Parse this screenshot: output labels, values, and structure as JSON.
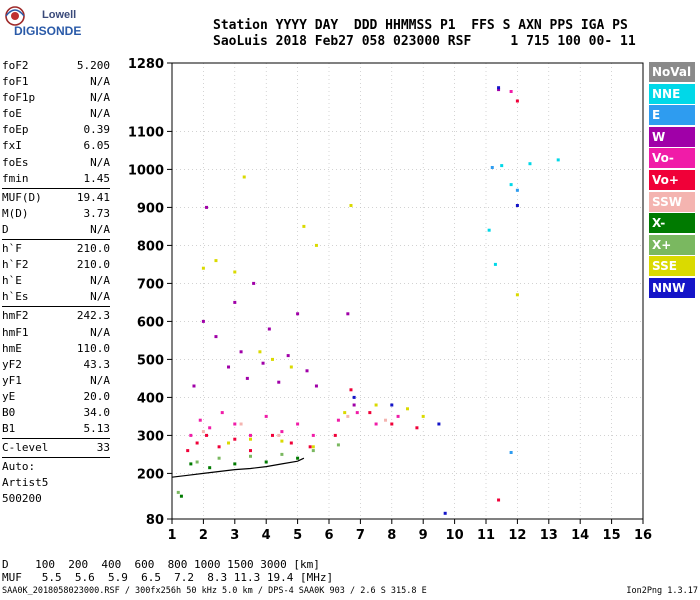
{
  "logo": {
    "line1": "Lowell",
    "line2": "DIGISONDE"
  },
  "header": {
    "line1": "Station YYYY DAY  DDD HHMMSS P1  FFS S AXN PPS IGA PS",
    "line2": "SaoLuis 2018 Feb27 058 023000 RSF     1 715 100 00- 11"
  },
  "params": {
    "group1": [
      {
        "k": "foF2",
        "v": "5.200"
      },
      {
        "k": "foF1",
        "v": "N/A"
      },
      {
        "k": "foF1p",
        "v": "N/A"
      },
      {
        "k": "foE",
        "v": "N/A"
      },
      {
        "k": "foEp",
        "v": "0.39"
      },
      {
        "k": "fxI",
        "v": "6.05"
      },
      {
        "k": "foEs",
        "v": "N/A"
      },
      {
        "k": "fmin",
        "v": "1.45"
      }
    ],
    "group2": [
      {
        "k": "MUF(D)",
        "v": "19.41"
      },
      {
        "k": "M(D)",
        "v": "3.73"
      },
      {
        "k": "D",
        "v": "N/A"
      }
    ],
    "group3": [
      {
        "k": "h`F",
        "v": "210.0"
      },
      {
        "k": "h`F2",
        "v": "210.0"
      },
      {
        "k": "h`E",
        "v": "N/A"
      },
      {
        "k": "h`Es",
        "v": "N/A"
      }
    ],
    "group4": [
      {
        "k": "hmF2",
        "v": "242.3"
      },
      {
        "k": "hmF1",
        "v": "N/A"
      },
      {
        "k": "hmE",
        "v": "110.0"
      },
      {
        "k": "yF2",
        "v": "43.3"
      },
      {
        "k": "yF1",
        "v": "N/A"
      },
      {
        "k": "yE",
        "v": "20.0"
      },
      {
        "k": "B0",
        "v": "34.0"
      },
      {
        "k": "B1",
        "v": "5.13"
      }
    ],
    "clevel": {
      "k": "C-level",
      "v": "33"
    },
    "auto": [
      "Auto:",
      "Artist5",
      "500200"
    ]
  },
  "legend": [
    {
      "label": "NoVal",
      "color": "#8a8a8a"
    },
    {
      "label": "NNE",
      "color": "#00d8e8"
    },
    {
      "label": "E",
      "color": "#2e9cf0"
    },
    {
      "label": "W",
      "color": "#a000a8"
    },
    {
      "label": "Vo-",
      "color": "#f01ca8"
    },
    {
      "label": "Vo+",
      "color": "#f00038"
    },
    {
      "label": "SSW",
      "color": "#f4b4b0"
    },
    {
      "label": "X-",
      "color": "#007a00"
    },
    {
      "label": "X+",
      "color": "#7ab860"
    },
    {
      "label": "SSE",
      "color": "#dada00"
    },
    {
      "label": "NNW",
      "color": "#1414c8"
    }
  ],
  "bottom": {
    "d_line": "D    100  200  400  600  800 1000 1500 3000 [km]",
    "muf_line": "MUF   5.5  5.6  5.9  6.5  7.2  8.3 11.3 19.4 [MHz]"
  },
  "footer": {
    "left": "SAA0K_2018058023000.RSF / 300fx256h 50 kHz 5.0 km / DPS-4 SAA0K 903 / 2.6 S 315.8 E",
    "right": "Ion2Png 1.3.17"
  },
  "chart_data": {
    "type": "scatter",
    "title": "",
    "xlabel": "",
    "ylabel": "",
    "xlim": [
      1,
      16
    ],
    "ylim": [
      80,
      1280
    ],
    "xticks": [
      1,
      2,
      3,
      4,
      5,
      6,
      7,
      8,
      9,
      10,
      11,
      12,
      13,
      14,
      15,
      16
    ],
    "yticks": [
      80,
      200,
      300,
      400,
      500,
      600,
      700,
      800,
      900,
      1000,
      1100,
      1280
    ],
    "grid": "dotted",
    "legend_position": "right",
    "series": [
      {
        "name": "NoVal",
        "points": []
      },
      {
        "name": "NNE",
        "points": [
          [
            11.1,
            840
          ],
          [
            11.3,
            750
          ],
          [
            11.5,
            1010
          ],
          [
            11.8,
            960
          ],
          [
            12.4,
            1015
          ],
          [
            13.3,
            1025
          ]
        ]
      },
      {
        "name": "E",
        "points": [
          [
            11.2,
            1005
          ],
          [
            11.8,
            255
          ],
          [
            12.0,
            945
          ]
        ]
      },
      {
        "name": "W",
        "points": [
          [
            1.7,
            430
          ],
          [
            2.0,
            600
          ],
          [
            2.1,
            900
          ],
          [
            2.4,
            560
          ],
          [
            2.8,
            480
          ],
          [
            3.0,
            650
          ],
          [
            3.2,
            520
          ],
          [
            3.4,
            450
          ],
          [
            3.6,
            700
          ],
          [
            3.9,
            490
          ],
          [
            4.1,
            580
          ],
          [
            4.4,
            440
          ],
          [
            4.7,
            510
          ],
          [
            5.0,
            620
          ],
          [
            5.3,
            470
          ],
          [
            5.6,
            430
          ],
          [
            6.6,
            620
          ],
          [
            6.8,
            380
          ],
          [
            11.4,
            1210
          ]
        ]
      },
      {
        "name": "Vo-",
        "points": [
          [
            1.6,
            300
          ],
          [
            1.9,
            340
          ],
          [
            2.2,
            320
          ],
          [
            2.6,
            360
          ],
          [
            3.0,
            330
          ],
          [
            3.5,
            300
          ],
          [
            4.0,
            350
          ],
          [
            4.5,
            310
          ],
          [
            5.0,
            330
          ],
          [
            5.5,
            300
          ],
          [
            6.3,
            340
          ],
          [
            6.9,
            360
          ],
          [
            7.5,
            330
          ],
          [
            8.2,
            350
          ],
          [
            11.8,
            1205
          ]
        ]
      },
      {
        "name": "Vo+",
        "points": [
          [
            1.5,
            260
          ],
          [
            1.8,
            280
          ],
          [
            2.1,
            300
          ],
          [
            2.5,
            270
          ],
          [
            3.0,
            290
          ],
          [
            3.5,
            260
          ],
          [
            4.2,
            300
          ],
          [
            4.8,
            280
          ],
          [
            5.4,
            270
          ],
          [
            6.2,
            300
          ],
          [
            6.7,
            420
          ],
          [
            7.3,
            360
          ],
          [
            8.0,
            330
          ],
          [
            8.8,
            320
          ],
          [
            12.0,
            1180
          ],
          [
            11.4,
            130
          ]
        ]
      },
      {
        "name": "SSW",
        "points": [
          [
            2.0,
            310
          ],
          [
            3.2,
            330
          ],
          [
            4.4,
            300
          ],
          [
            6.6,
            350
          ],
          [
            7.8,
            340
          ]
        ]
      },
      {
        "name": "X-",
        "points": [
          [
            1.6,
            225
          ],
          [
            2.2,
            215
          ],
          [
            3.0,
            225
          ],
          [
            4.0,
            230
          ],
          [
            5.0,
            240
          ],
          [
            1.3,
            140
          ]
        ]
      },
      {
        "name": "X+",
        "points": [
          [
            1.8,
            230
          ],
          [
            2.5,
            240
          ],
          [
            3.5,
            245
          ],
          [
            4.5,
            250
          ],
          [
            5.5,
            260
          ],
          [
            6.3,
            275
          ],
          [
            1.2,
            150
          ]
        ]
      },
      {
        "name": "SSE",
        "points": [
          [
            2.0,
            740
          ],
          [
            2.4,
            760
          ],
          [
            3.0,
            730
          ],
          [
            3.3,
            980
          ],
          [
            3.8,
            520
          ],
          [
            4.2,
            500
          ],
          [
            4.8,
            480
          ],
          [
            5.2,
            850
          ],
          [
            5.6,
            800
          ],
          [
            2.8,
            280
          ],
          [
            3.5,
            290
          ],
          [
            4.5,
            285
          ],
          [
            5.5,
            270
          ],
          [
            6.5,
            360
          ],
          [
            7.5,
            380
          ],
          [
            8.5,
            370
          ],
          [
            9.0,
            350
          ],
          [
            12.0,
            670
          ],
          [
            6.7,
            905
          ]
        ]
      },
      {
        "name": "NNW",
        "points": [
          [
            6.8,
            400
          ],
          [
            8.0,
            380
          ],
          [
            9.5,
            330
          ],
          [
            11.4,
            1215
          ],
          [
            12.0,
            905
          ],
          [
            9.7,
            95
          ]
        ]
      }
    ],
    "trace": {
      "name": "profile",
      "points": [
        [
          1.0,
          190
        ],
        [
          1.5,
          195
        ],
        [
          2.0,
          200
        ],
        [
          2.5,
          205
        ],
        [
          3.0,
          210
        ],
        [
          3.5,
          213
        ],
        [
          4.0,
          218
        ],
        [
          4.5,
          225
        ],
        [
          5.0,
          232
        ],
        [
          5.2,
          240
        ]
      ]
    }
  }
}
